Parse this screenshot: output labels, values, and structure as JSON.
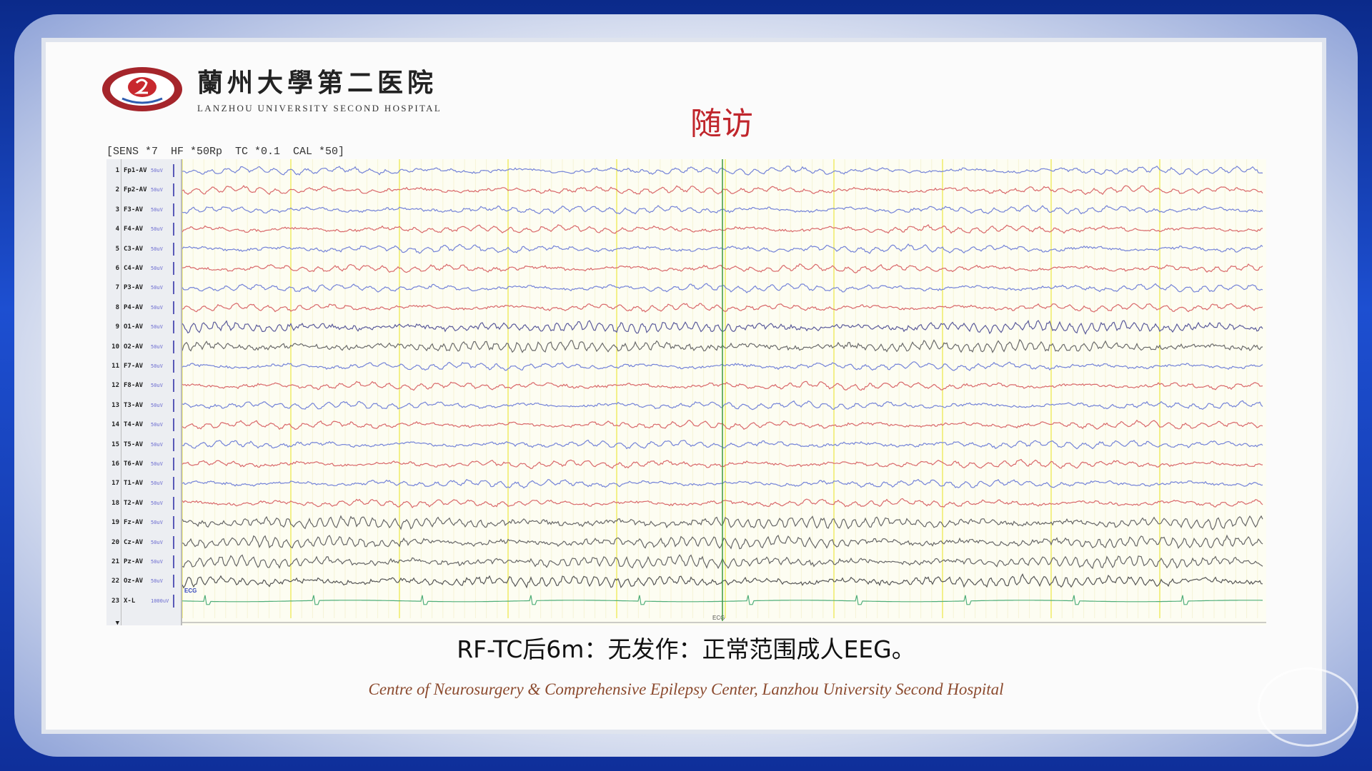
{
  "header": {
    "hospital_cn": "蘭州大學第二医院",
    "hospital_en": "LANZHOU UNIVERSITY SECOND HOSPITAL",
    "slide_title": "随访"
  },
  "eeg": {
    "settings_line": "[SENS *7  HF *50Rp  TC *0.1  CAL *50]",
    "channels": [
      {
        "num": "1",
        "name": "Fp1-AV",
        "unit": "50uV",
        "color": "#7483d8"
      },
      {
        "num": "2",
        "name": "Fp2-AV",
        "unit": "50uV",
        "color": "#d9686a"
      },
      {
        "num": "3",
        "name": "F3-AV",
        "unit": "50uV",
        "color": "#7483d8"
      },
      {
        "num": "4",
        "name": "F4-AV",
        "unit": "50uV",
        "color": "#d9686a"
      },
      {
        "num": "5",
        "name": "C3-AV",
        "unit": "50uV",
        "color": "#7483d8"
      },
      {
        "num": "6",
        "name": "C4-AV",
        "unit": "50uV",
        "color": "#d9686a"
      },
      {
        "num": "7",
        "name": "P3-AV",
        "unit": "50uV",
        "color": "#7483d8"
      },
      {
        "num": "8",
        "name": "P4-AV",
        "unit": "50uV",
        "color": "#d9686a"
      },
      {
        "num": "9",
        "name": "O1-AV",
        "unit": "50uV",
        "color": "#5a5a9a"
      },
      {
        "num": "10",
        "name": "O2-AV",
        "unit": "50uV",
        "color": "#6a6a6a"
      },
      {
        "num": "11",
        "name": "F7-AV",
        "unit": "50uV",
        "color": "#7483d8"
      },
      {
        "num": "12",
        "name": "F8-AV",
        "unit": "50uV",
        "color": "#d9686a"
      },
      {
        "num": "13",
        "name": "T3-AV",
        "unit": "50uV",
        "color": "#7483d8"
      },
      {
        "num": "14",
        "name": "T4-AV",
        "unit": "50uV",
        "color": "#d9686a"
      },
      {
        "num": "15",
        "name": "T5-AV",
        "unit": "50uV",
        "color": "#7483d8"
      },
      {
        "num": "16",
        "name": "T6-AV",
        "unit": "50uV",
        "color": "#d9686a"
      },
      {
        "num": "17",
        "name": "T1-AV",
        "unit": "50uV",
        "color": "#7483d8"
      },
      {
        "num": "18",
        "name": "T2-AV",
        "unit": "50uV",
        "color": "#d9686a"
      },
      {
        "num": "19",
        "name": "Fz-AV",
        "unit": "50uV",
        "color": "#666666"
      },
      {
        "num": "20",
        "name": "Cz-AV",
        "unit": "50uV",
        "color": "#666666"
      },
      {
        "num": "21",
        "name": "Pz-AV",
        "unit": "50uV",
        "color": "#666666"
      },
      {
        "num": "22",
        "name": "Oz-AV",
        "unit": "50uV",
        "color": "#555555"
      },
      {
        "num": "23",
        "name": "X-L",
        "unit": "1000uV",
        "color": "#4fae7a"
      }
    ],
    "ecg_label": "ECG",
    "marker_label": "ECG",
    "bottom_row_label": "▼",
    "grid_color": "#f3f08a",
    "cursor_color": "#3d9a3d"
  },
  "summary": {
    "text": "RF-TC后6m：无发作：正常范围成人EEG。"
  },
  "footer": {
    "text": "Centre  of  Neurosurgery & Comprehensive Epilepsy Center,  Lanzhou University Second Hospital"
  }
}
